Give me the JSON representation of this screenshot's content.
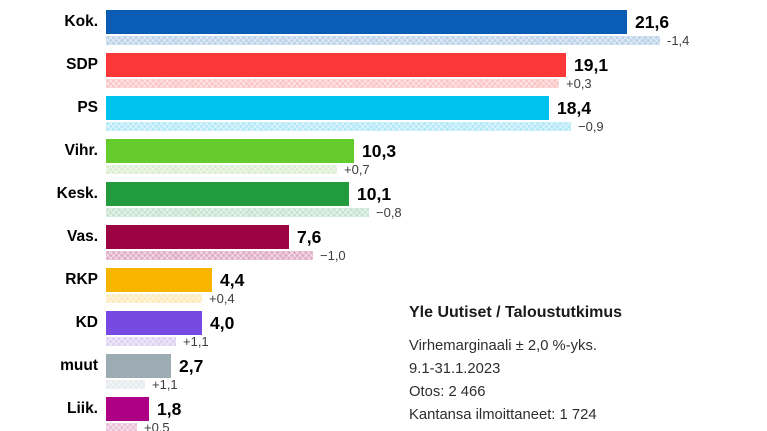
{
  "chart_data": {
    "type": "bar",
    "orientation": "horizontal",
    "unit": "%",
    "grid": false,
    "xlim": [
      0,
      27.5
    ],
    "categories": [
      "Kok.",
      "SDP",
      "PS",
      "Vihr.",
      "Kesk.",
      "Vas.",
      "RKP",
      "KD",
      "muut",
      "Liik."
    ],
    "series": [
      {
        "name": "current",
        "values": [
          21.6,
          19.1,
          18.4,
          10.3,
          10.1,
          7.6,
          4.4,
          4.0,
          2.7,
          1.8
        ]
      },
      {
        "name": "previous",
        "values": [
          23.0,
          18.8,
          19.3,
          9.6,
          10.9,
          8.6,
          4.0,
          2.9,
          1.6,
          1.3
        ]
      }
    ],
    "bars": [
      {
        "label": "Kok.",
        "value": 21.6,
        "value_label": "21,6",
        "previous": 23.0,
        "change_label": "-1,4",
        "color": "#0b5cb4",
        "light_color": "#bdd3ea"
      },
      {
        "label": "SDP",
        "value": 19.1,
        "value_label": "19,1",
        "previous": 18.8,
        "change_label": "+0,3",
        "color": "#fc3737",
        "light_color": "#fbc6c6"
      },
      {
        "label": "PS",
        "value": 18.4,
        "value_label": "18,4",
        "previous": 19.3,
        "change_label": "−0,9",
        "color": "#00c2ef",
        "light_color": "#b5e9f8"
      },
      {
        "label": "Vihr.",
        "value": 10.3,
        "value_label": "10,3",
        "previous": 9.6,
        "change_label": "+0,7",
        "color": "#66cc2e",
        "light_color": "#dceed2"
      },
      {
        "label": "Kesk.",
        "value": 10.1,
        "value_label": "10,1",
        "previous": 10.9,
        "change_label": "−0,8",
        "color": "#219b3e",
        "light_color": "#c8e4d0"
      },
      {
        "label": "Vas.",
        "value": 7.6,
        "value_label": "7,6",
        "previous": 8.6,
        "change_label": "−1,0",
        "color": "#9b0343",
        "light_color": "#e0aec6"
      },
      {
        "label": "RKP",
        "value": 4.4,
        "value_label": "4,4",
        "previous": 4.0,
        "change_label": "+0,4",
        "color": "#f7b500",
        "light_color": "#fdeab9"
      },
      {
        "label": "KD",
        "value": 4.0,
        "value_label": "4,0",
        "previous": 2.9,
        "change_label": "+1,1",
        "color": "#7549e2",
        "light_color": "#ddd0f2"
      },
      {
        "label": "muut",
        "value": 2.7,
        "value_label": "2,7",
        "previous": 1.6,
        "change_label": "+1,1",
        "color": "#9dacb3",
        "light_color": "#e5eaed"
      },
      {
        "label": "Liik.",
        "value": 1.8,
        "value_label": "1,8",
        "previous": 1.3,
        "change_label": "+0.5",
        "color": "#ae0084",
        "light_color": "#eabfd7"
      }
    ]
  },
  "info": {
    "title": "Yle Uutiset / Taloustutkimus",
    "lines": [
      "Virhemarginaali ± 2,0 %-yks.",
      "9.1-31.1.2023",
      "Otos: 2 466",
      "Kantansa ilmoittaneet: 1 724"
    ]
  }
}
